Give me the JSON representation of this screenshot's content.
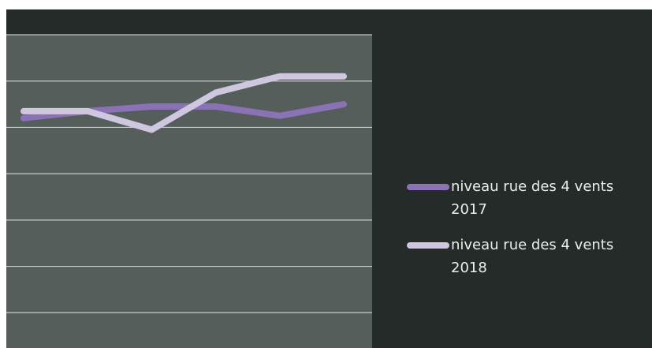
{
  "chart_data": {
    "type": "line",
    "title": "",
    "xlabel": "",
    "ylabel": "",
    "x": [
      1,
      2,
      3,
      4,
      5,
      6
    ],
    "ylim": [
      0,
      7
    ],
    "grid": true,
    "legend_position": "right",
    "series": [
      {
        "name": "niveau rue des 4 vents 2017",
        "values": [
          5.2,
          5.35,
          5.45,
          5.45,
          5.25,
          5.5
        ],
        "color": "#8a72b4"
      },
      {
        "name": "niveau rue des 4 vents 2018",
        "values": [
          5.35,
          5.35,
          4.95,
          5.75,
          6.1,
          6.1
        ],
        "color": "#cfc6df"
      }
    ]
  },
  "colors": {
    "page_background": "#242b29",
    "plot_background": "#555e5b",
    "gridline": "#d9ddda"
  }
}
